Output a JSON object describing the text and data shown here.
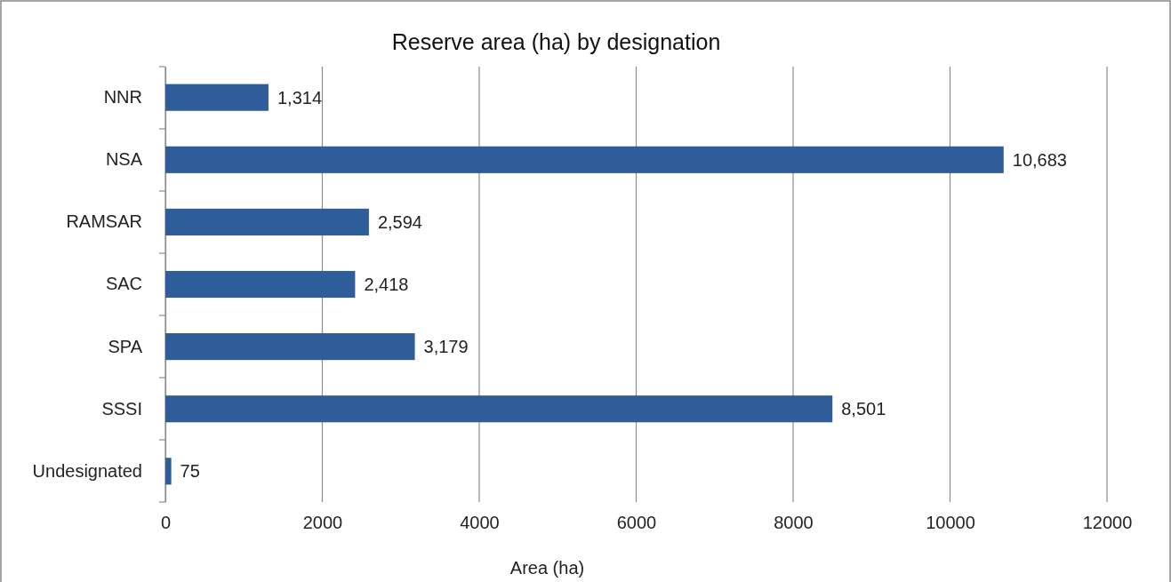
{
  "chart_data": {
    "type": "bar",
    "orientation": "horizontal",
    "title": "Reserve area (ha) by designation",
    "xlabel": "Area (ha)",
    "categories": [
      "NNR",
      "NSA",
      "RAMSAR",
      "SAC",
      "SPA",
      "SSSI",
      "Undesignated"
    ],
    "values": [
      1314,
      10683,
      2594,
      2418,
      3179,
      8501,
      75
    ],
    "value_labels": [
      "1,314",
      "10,683",
      "2,594",
      "2,418",
      "3,179",
      "8,501",
      "75"
    ],
    "color": "#2e5d99",
    "xlim": [
      0,
      12000
    ],
    "xticks": [
      0,
      2000,
      4000,
      6000,
      8000,
      10000,
      12000
    ],
    "grid": "x"
  }
}
